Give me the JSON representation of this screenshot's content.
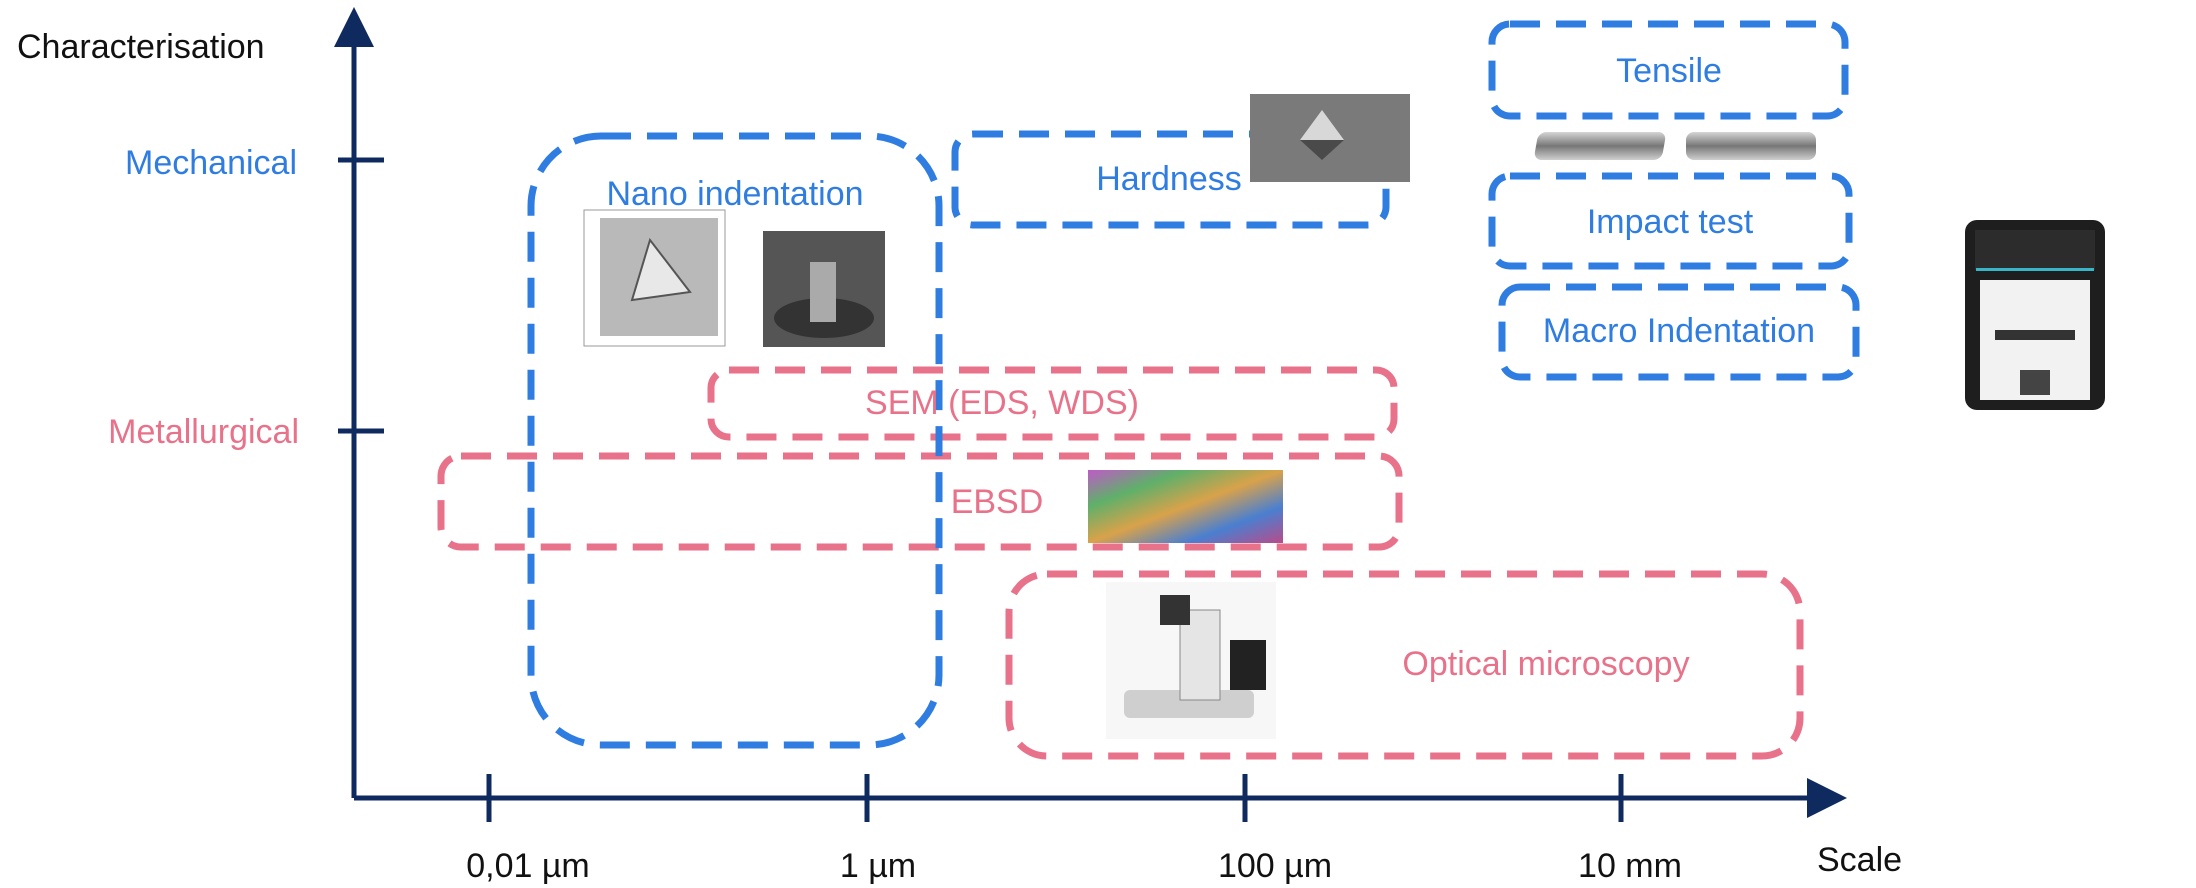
{
  "axes": {
    "y_title": "Characterisation",
    "x_title": "Scale",
    "y_categories": [
      "Mechanical",
      "Metallurgical"
    ],
    "x_ticks": [
      "0,01 µm",
      "1 µm",
      "100 µm",
      "10 mm"
    ]
  },
  "boxes": {
    "mechanical": [
      "Nano indentation",
      "Hardness",
      "Tensile",
      "Impact test",
      "Macro Indentation"
    ],
    "metallurgical": [
      "SEM (EDS, WDS)",
      "EBSD",
      "Optical microscopy"
    ]
  }
}
